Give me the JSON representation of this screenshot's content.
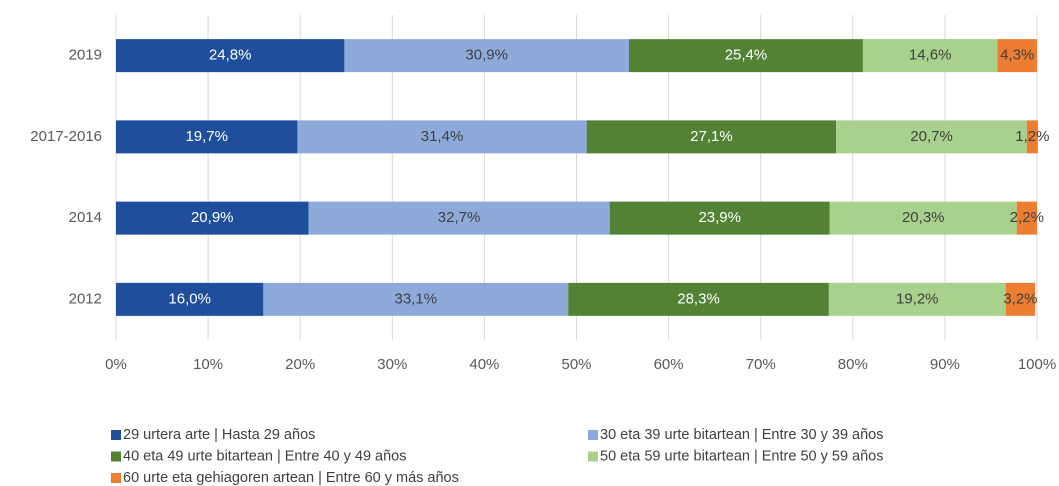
{
  "chart_data": {
    "type": "stacked_barh",
    "categories": [
      "2019",
      "2017-2016",
      "2014",
      "2012"
    ],
    "series": [
      {
        "name": "29 urtera arte | Hasta 29 años",
        "color": "#1f4e9c",
        "values": [
          24.8,
          19.7,
          20.9,
          16.0
        ],
        "value_labels": [
          "24,8%",
          "19,7%",
          "20,9%",
          "16,0%"
        ]
      },
      {
        "name": "30 eta 39 urte bitartean | Entre 30 y 39 años",
        "color": "#8eaadb",
        "values": [
          30.9,
          31.4,
          32.7,
          33.1
        ],
        "value_labels": [
          "30,9%",
          "31,4%",
          "32,7%",
          "33,1%"
        ]
      },
      {
        "name": "40 eta 49 urte bitartean | Entre 40 y 49 años",
        "color": "#548235",
        "values": [
          25.4,
          27.1,
          23.9,
          28.3
        ],
        "value_labels": [
          "25,4%",
          "27,1%",
          "23,9%",
          "28,3%"
        ]
      },
      {
        "name": "50 eta 59 urte bitartean | Entre 50 y 59 años",
        "color": "#a9d18e",
        "values": [
          14.6,
          20.7,
          20.3,
          19.2
        ],
        "value_labels": [
          "14,6%",
          "20,7%",
          "20,3%",
          "19,2%"
        ]
      },
      {
        "name": "60 urte eta gehiagoren artean | Entre 60 y más años",
        "color": "#ed7d31",
        "values": [
          4.3,
          1.2,
          2.2,
          3.2
        ],
        "value_labels": [
          "4,3%",
          "1,2%",
          "2,2%",
          "3,2%"
        ]
      }
    ],
    "xlim": [
      0,
      100
    ],
    "xticks": [
      {
        "value": 0,
        "label": "0%"
      },
      {
        "value": 10,
        "label": "10%"
      },
      {
        "value": 20,
        "label": "20%"
      },
      {
        "value": 30,
        "label": "30%"
      },
      {
        "value": 40,
        "label": "40%"
      },
      {
        "value": 50,
        "label": "50%"
      },
      {
        "value": 60,
        "label": "60%"
      },
      {
        "value": 70,
        "label": "70%"
      },
      {
        "value": 80,
        "label": "80%"
      },
      {
        "value": 90,
        "label": "90%"
      },
      {
        "value": 100,
        "label": "100%"
      }
    ],
    "grid": true,
    "legend": "bottom"
  }
}
